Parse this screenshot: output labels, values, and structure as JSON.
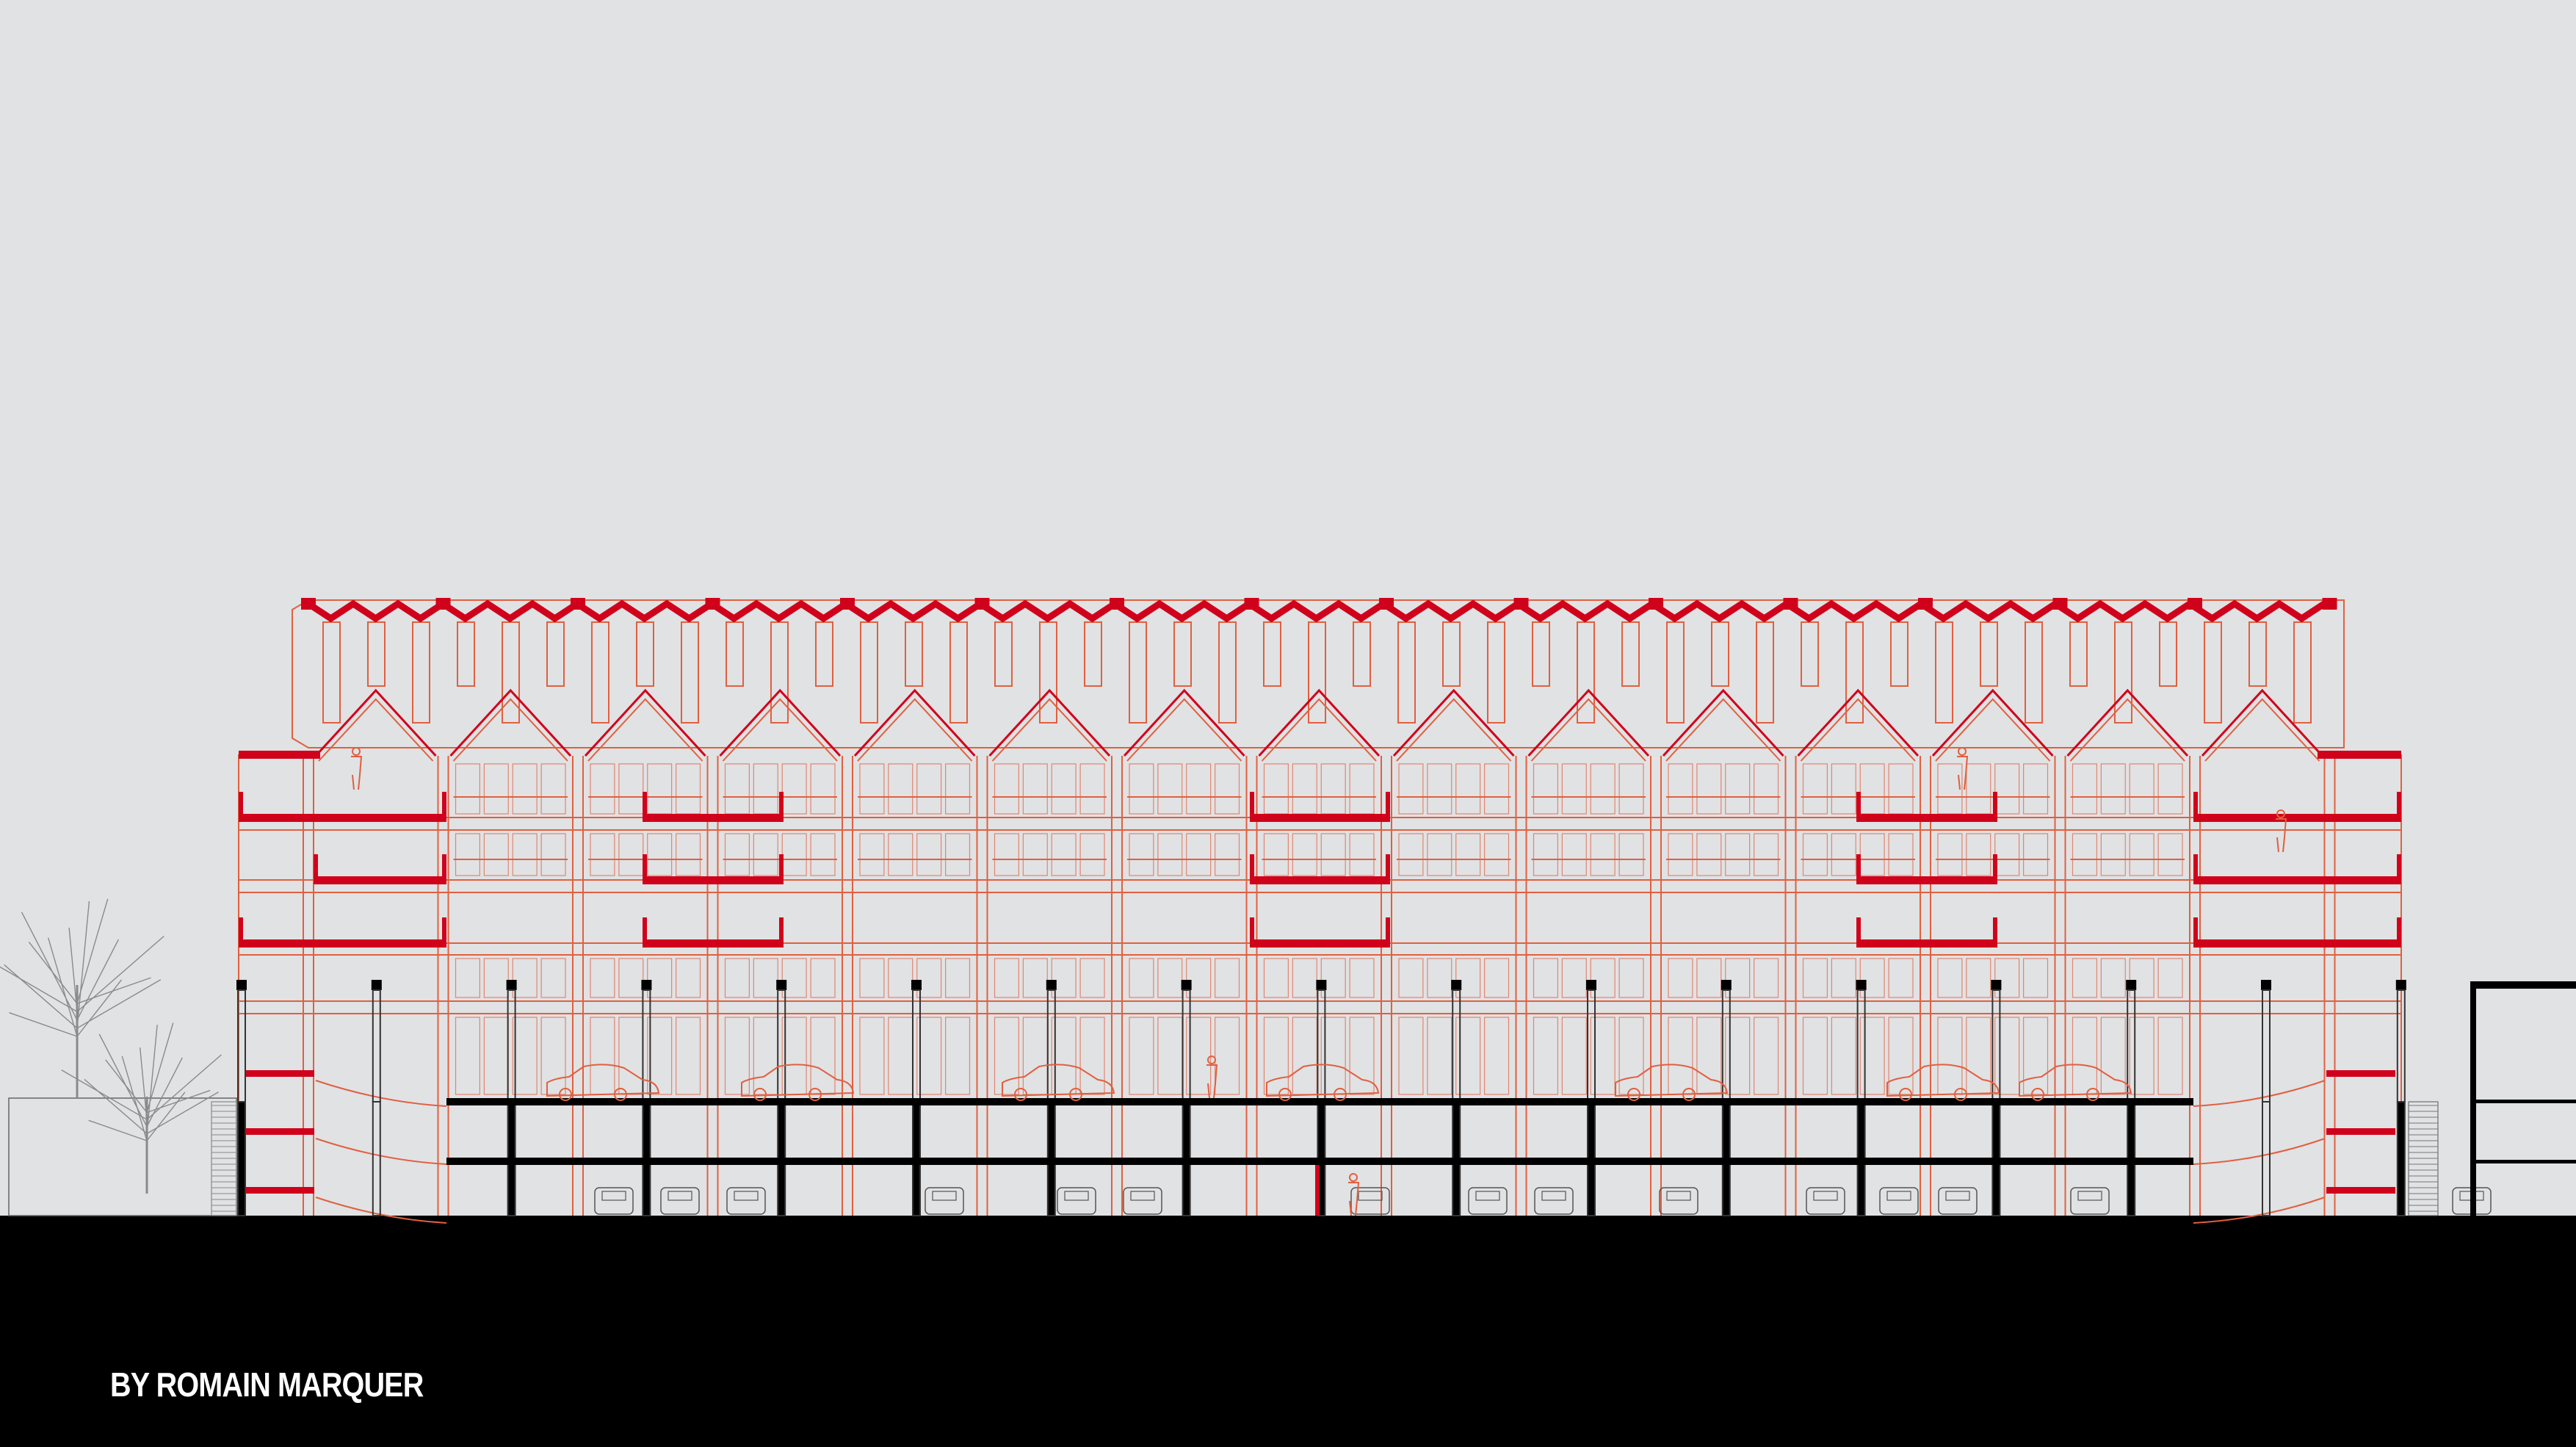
{
  "credit": "BY ROMAIN MARQUER",
  "colors": {
    "background": "#e1e2e4",
    "ground": "#000000",
    "slab_red": "#d0021b",
    "line_red": "#e0603f",
    "structure_black": "#000000",
    "tree_grey": "#8a8a8a"
  },
  "drawing": {
    "type": "building-section",
    "gable_count": 15
  }
}
